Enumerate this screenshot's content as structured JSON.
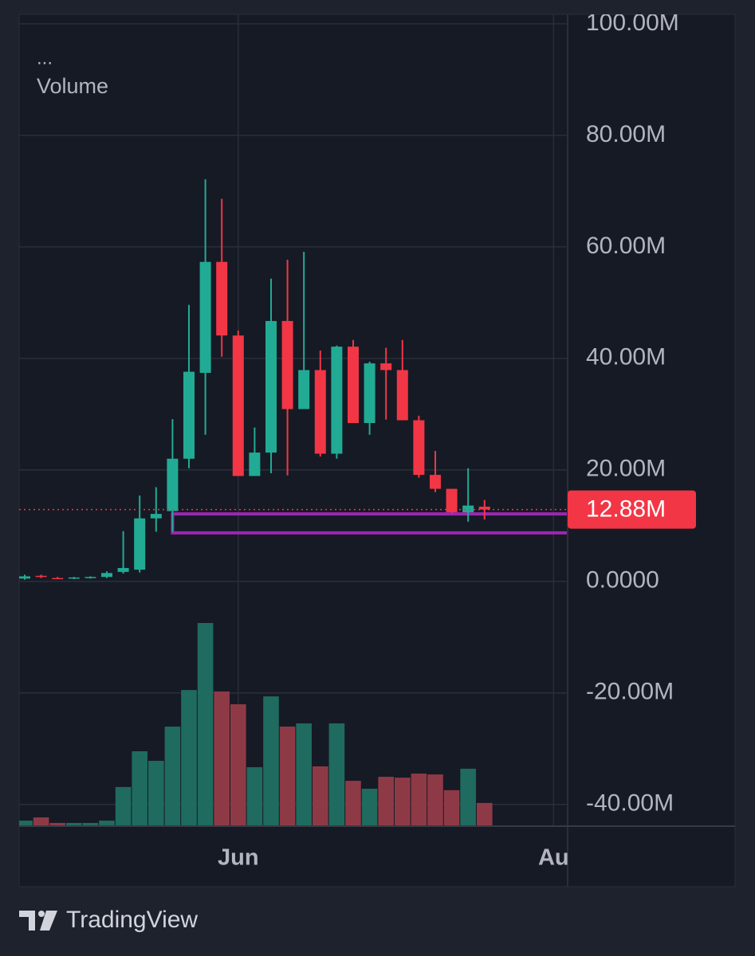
{
  "chart_data": {
    "type": "candlestick",
    "menu": "...",
    "volume_title": "Volume",
    "x": [
      0,
      1,
      2,
      3,
      4,
      5,
      6,
      7,
      8,
      9,
      10,
      11,
      12,
      13,
      14,
      15,
      16,
      17,
      18,
      19,
      20,
      21,
      22,
      23,
      24,
      25,
      26,
      27,
      28
    ],
    "open": [
      0.5,
      1.0,
      0.6,
      0.6,
      0.7,
      0.8,
      1.7,
      2.1,
      11.3,
      12.6,
      22.0,
      37.4,
      57.3,
      44.1,
      18.9,
      23.1,
      46.7,
      30.9,
      37.9,
      22.9,
      42.1,
      28.4,
      39.1,
      37.9,
      28.9,
      19.1,
      16.6,
      12.4,
      13.4
    ],
    "high": [
      1.2,
      1.2,
      0.8,
      0.8,
      0.9,
      1.8,
      9.0,
      15.4,
      16.9,
      29.1,
      49.6,
      72.1,
      68.6,
      45.0,
      27.6,
      54.3,
      57.7,
      59.1,
      41.4,
      42.3,
      43.3,
      39.4,
      41.9,
      43.3,
      29.7,
      23.4,
      16.6,
      20.3,
      14.6
    ],
    "low": [
      0.3,
      0.6,
      0.4,
      0.4,
      0.5,
      0.6,
      1.4,
      1.6,
      8.9,
      8.9,
      20.3,
      26.3,
      40.3,
      18.9,
      18.9,
      19.4,
      19.0,
      30.9,
      22.4,
      22.0,
      28.4,
      26.3,
      29.0,
      28.9,
      18.6,
      16.0,
      12.2,
      10.7,
      11.1
    ],
    "close": [
      0.9,
      0.8,
      0.5,
      0.7,
      0.8,
      1.5,
      2.4,
      11.3,
      12.1,
      22.0,
      37.6,
      57.3,
      44.1,
      18.9,
      23.1,
      46.7,
      30.9,
      37.9,
      22.9,
      42.1,
      28.4,
      39.1,
      37.9,
      28.9,
      19.1,
      16.6,
      12.4,
      13.6,
      12.88
    ],
    "volume": [
      2.6,
      4.1,
      1.5,
      1.5,
      1.5,
      2.6,
      18.4,
      35.2,
      30.7,
      46.8,
      64.0,
      95.5,
      63.3,
      57.3,
      27.7,
      61.0,
      46.8,
      48.3,
      28.1,
      48.3,
      21.3,
      17.6,
      23.2,
      22.8,
      24.7,
      24.3,
      16.9,
      27.0,
      10.9
    ],
    "up_color": "#22ab94",
    "down_color": "#f23645",
    "volume_up_color": "#1f6b5f",
    "volume_down_color": "#8e3a46",
    "xlim": [
      -0.34,
      33.06
    ],
    "xticks": [
      {
        "value": 13,
        "label": "Jun"
      },
      {
        "value": 32.2,
        "label": "Au"
      }
    ],
    "ylim": [
      -43.9,
      101.7
    ],
    "yticks": [
      {
        "value": 100,
        "label": "100.00M"
      },
      {
        "value": 80,
        "label": "80.00M"
      },
      {
        "value": 60,
        "label": "60.00M"
      },
      {
        "value": 40,
        "label": "40.00M"
      },
      {
        "value": 20,
        "label": "20.00M"
      },
      {
        "value": 0,
        "label": "0.0000"
      },
      {
        "value": -20,
        "label": "-20.00M"
      },
      {
        "value": -40,
        "label": "-40.00M"
      }
    ],
    "volume_ylim": [
      0,
      100
    ],
    "grid": true,
    "zone": {
      "x_start": 9,
      "ylim": [
        8.7,
        12.1
      ],
      "color": "#9c27b0"
    },
    "last_price": {
      "value": 12.88,
      "label": "12.88M",
      "color": "#f23645"
    }
  },
  "footer": {
    "brand": "TradingView"
  }
}
